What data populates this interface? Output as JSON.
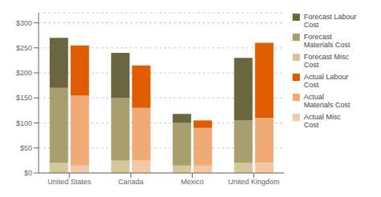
{
  "chart_data": {
    "type": "bar",
    "stacked": true,
    "grid": true,
    "legend": "right",
    "categories": [
      "United States",
      "Canada",
      "Mexico",
      "United Kingdom"
    ],
    "stacks": [
      {
        "series": [
          {
            "name": "Forecast Labour\nCost",
            "color": "#6b6540",
            "values": [
              100,
              90,
              18,
              125
            ]
          },
          {
            "name": "Forecast\nMaterials Cost",
            "color": "#a89e6e",
            "values": [
              150,
              125,
              85,
              85
            ]
          },
          {
            "name": "Forecast Misc\nCost",
            "color": "#d4c89a",
            "values": [
              20,
              25,
              15,
              20
            ]
          }
        ]
      },
      {
        "series": [
          {
            "name": "Actual Labour\nCost",
            "color": "#e05c00",
            "values": [
              100,
              85,
              15,
              150
            ]
          },
          {
            "name": "Actual\nMaterials Cost",
            "color": "#f0aa78",
            "values": [
              140,
              105,
              75,
              90
            ]
          },
          {
            "name": "Actual Misc\nCost",
            "color": "#f5c8a5",
            "values": [
              15,
              25,
              15,
              20
            ]
          }
        ]
      }
    ],
    "ylim": [
      0,
      320
    ],
    "yticks": [
      {
        "value": 0,
        "label": "$0"
      },
      {
        "value": 50,
        "label": "$50"
      },
      {
        "value": 100,
        "label": "$100"
      },
      {
        "value": 150,
        "label": "$150"
      },
      {
        "value": 200,
        "label": "$200"
      },
      {
        "value": 250,
        "label": "$250"
      },
      {
        "value": 300,
        "label": "$300"
      }
    ]
  }
}
